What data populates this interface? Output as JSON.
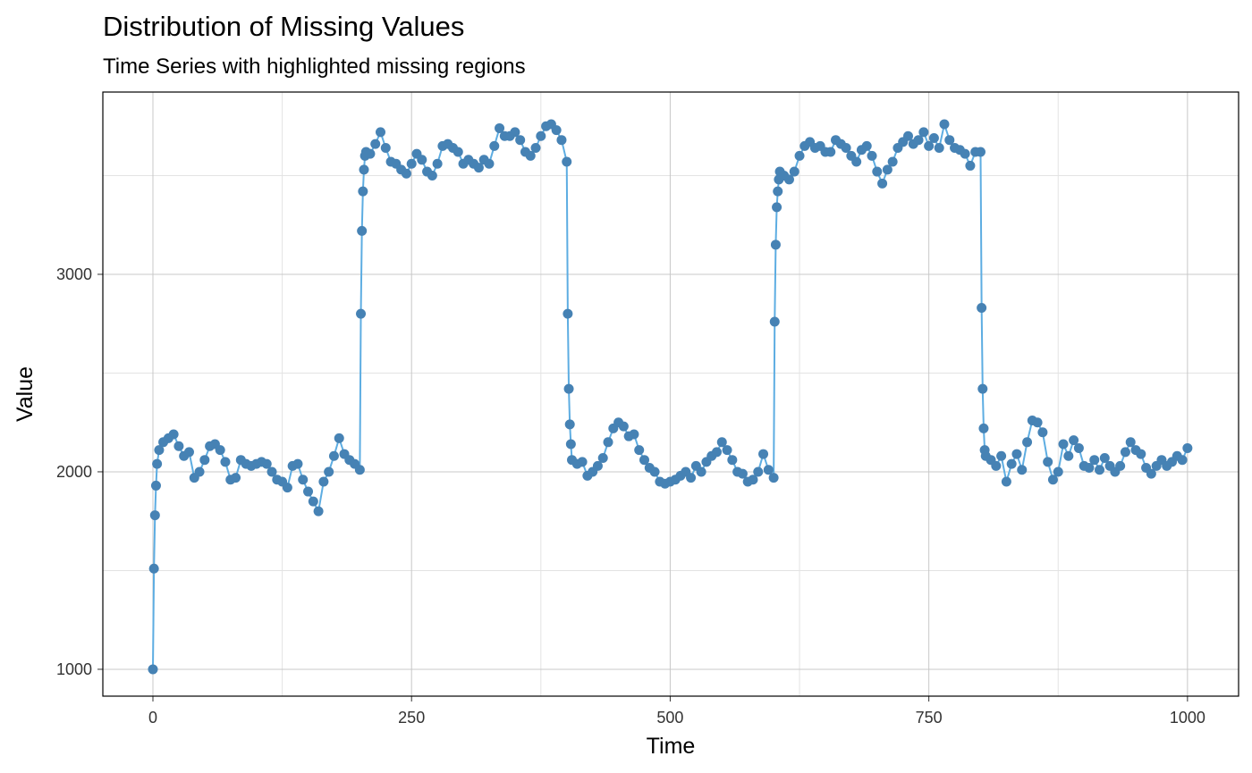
{
  "chart_data": {
    "type": "line_points",
    "title": "Distribution of Missing Values",
    "subtitle": "Time Series with highlighted missing regions",
    "x_label": "Time",
    "y_label": "Value",
    "line_color": "#5dade2",
    "point_color": "#4682b4",
    "xlim": [
      -48.4,
      1049.4
    ],
    "ylim": [
      864,
      3923
    ],
    "xticks": [
      0,
      250,
      500,
      750,
      1000
    ],
    "yticks": [
      1000,
      2000,
      3000
    ],
    "x_minor_ticks": [
      125,
      375,
      625,
      875
    ],
    "y_minor_ticks": [
      1500,
      2500,
      3500
    ],
    "grid": true,
    "x": [
      0,
      1,
      2,
      3,
      4,
      6,
      10,
      15,
      20,
      25,
      30,
      35,
      40,
      45,
      50,
      55,
      60,
      65,
      70,
      75,
      80,
      85,
      90,
      95,
      100,
      105,
      110,
      115,
      120,
      125,
      130,
      135,
      140,
      145,
      150,
      155,
      160,
      165,
      170,
      175,
      180,
      185,
      190,
      195,
      200,
      201,
      202,
      203,
      204,
      205,
      206,
      210,
      215,
      220,
      225,
      230,
      235,
      240,
      245,
      250,
      255,
      260,
      265,
      270,
      275,
      280,
      285,
      290,
      295,
      300,
      305,
      310,
      315,
      320,
      325,
      330,
      335,
      340,
      345,
      350,
      355,
      360,
      365,
      370,
      375,
      380,
      385,
      390,
      395,
      400,
      401,
      402,
      403,
      404,
      405,
      410,
      415,
      420,
      425,
      430,
      435,
      440,
      445,
      450,
      455,
      460,
      465,
      470,
      475,
      480,
      485,
      490,
      495,
      500,
      505,
      510,
      515,
      520,
      525,
      530,
      535,
      540,
      545,
      550,
      555,
      560,
      565,
      570,
      575,
      580,
      585,
      590,
      595,
      600,
      601,
      602,
      603,
      604,
      605,
      606,
      610,
      615,
      620,
      625,
      630,
      635,
      640,
      645,
      650,
      655,
      660,
      665,
      670,
      675,
      680,
      685,
      690,
      695,
      700,
      705,
      710,
      715,
      720,
      725,
      730,
      735,
      740,
      745,
      750,
      755,
      760,
      765,
      770,
      775,
      780,
      785,
      790,
      795,
      800,
      801,
      802,
      803,
      804,
      805,
      810,
      815,
      820,
      825,
      830,
      835,
      840,
      845,
      850,
      855,
      860,
      865,
      870,
      875,
      880,
      885,
      890,
      895,
      900,
      905,
      910,
      915,
      920,
      925,
      930,
      935,
      940,
      945,
      950,
      955,
      960,
      965,
      970,
      975,
      980,
      985,
      990,
      995,
      1000
    ],
    "values": [
      1000,
      1510,
      1780,
      1930,
      2040,
      2110,
      2150,
      2170,
      2190,
      2130,
      2080,
      2100,
      1970,
      2000,
      2060,
      2130,
      2140,
      2110,
      2050,
      1960,
      1970,
      2060,
      2040,
      2030,
      2040,
      2050,
      2040,
      2000,
      1960,
      1950,
      1920,
      2030,
      2040,
      1960,
      1900,
      1850,
      1800,
      1950,
      2000,
      2080,
      2170,
      2090,
      2060,
      2040,
      2010,
      2800,
      3220,
      3420,
      3530,
      3600,
      3620,
      3610,
      3660,
      3720,
      3640,
      3570,
      3560,
      3530,
      3510,
      3560,
      3610,
      3580,
      3520,
      3500,
      3560,
      3650,
      3660,
      3640,
      3620,
      3560,
      3580,
      3560,
      3540,
      3580,
      3560,
      3650,
      3740,
      3700,
      3700,
      3720,
      3680,
      3620,
      3600,
      3640,
      3700,
      3750,
      3760,
      3730,
      3680,
      3570,
      2800,
      2420,
      2240,
      2140,
      2060,
      2040,
      2050,
      1980,
      2000,
      2030,
      2070,
      2150,
      2220,
      2250,
      2230,
      2180,
      2190,
      2110,
      2060,
      2020,
      2000,
      1950,
      1940,
      1950,
      1960,
      1980,
      2000,
      1970,
      2030,
      2000,
      2050,
      2080,
      2100,
      2150,
      2110,
      2060,
      2000,
      1990,
      1950,
      1960,
      2000,
      2090,
      2010,
      1970,
      2760,
      3150,
      3340,
      3420,
      3480,
      3520,
      3500,
      3480,
      3520,
      3600,
      3650,
      3670,
      3640,
      3650,
      3620,
      3620,
      3680,
      3660,
      3640,
      3600,
      3570,
      3630,
      3650,
      3600,
      3520,
      3460,
      3530,
      3570,
      3640,
      3670,
      3700,
      3660,
      3680,
      3720,
      3650,
      3690,
      3640,
      3760,
      3680,
      3640,
      3630,
      3610,
      3550,
      3620,
      3620,
      2830,
      2420,
      2220,
      2110,
      2080,
      2060,
      2030,
      2080,
      1950,
      2040,
      2090,
      2010,
      2150,
      2260,
      2250,
      2200,
      2050,
      1960,
      2000,
      2140,
      2080,
      2160,
      2120,
      2030,
      2020,
      2060,
      2010,
      2070,
      2030,
      2000,
      2030,
      2100,
      2150,
      2110,
      2090,
      2020,
      1990,
      2030,
      2060,
      2030,
      2050,
      2080,
      2060,
      2120
    ]
  }
}
